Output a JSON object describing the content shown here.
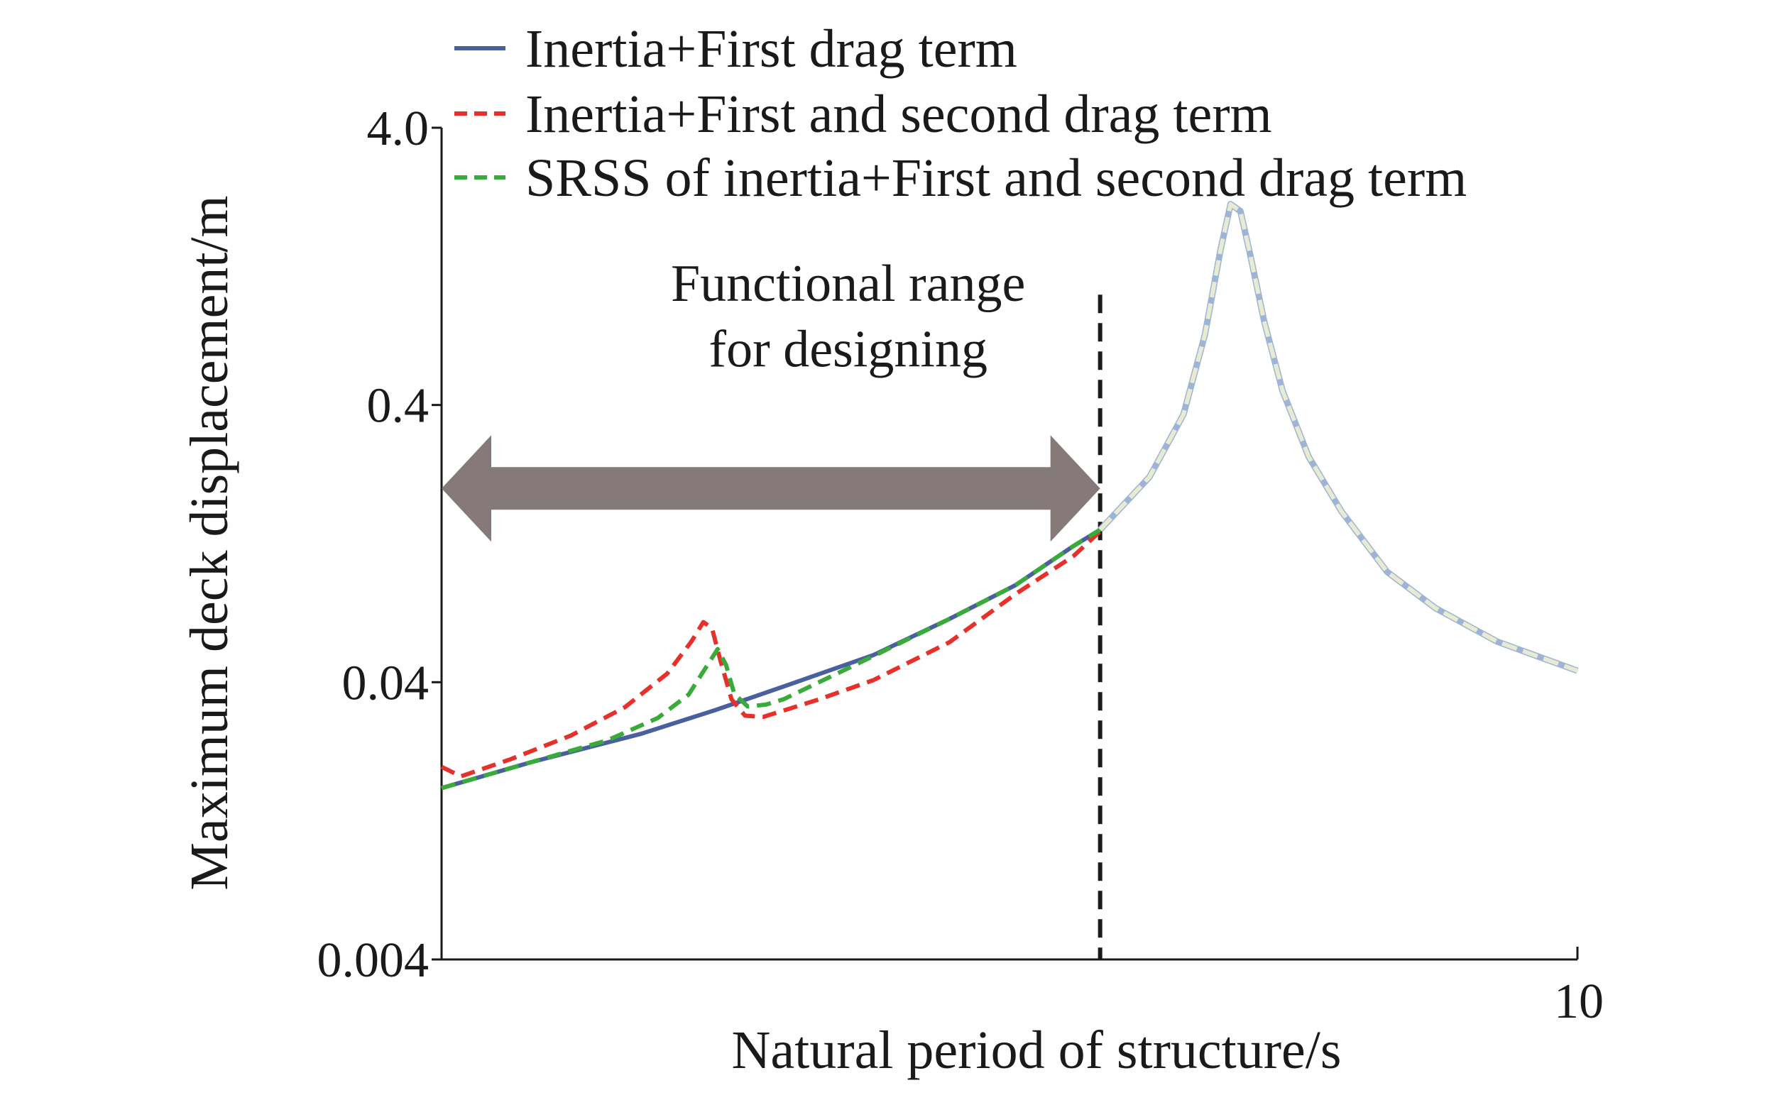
{
  "chart_data": {
    "type": "line",
    "title": "",
    "xlabel": "Natural period of structure/s",
    "ylabel": "Maximum deck displacement/m",
    "x_scale": "log",
    "y_scale": "log",
    "xlim": [
      1,
      10
    ],
    "ylim": [
      0.004,
      4.0
    ],
    "x_tick_labels": [
      "10"
    ],
    "x_tick_values": [
      10
    ],
    "y_tick_labels": [
      "4.0",
      "0.4",
      "0.04",
      "0.004"
    ],
    "y_tick_values": [
      4.0,
      0.4,
      0.04,
      0.004
    ],
    "grid": false,
    "legend_position": "top",
    "colors": {
      "inertia_first": "#4a5fa0",
      "inertia_first_second": "#e8302a",
      "srss": "#3aaa3a",
      "overlay": "#e8ebd2",
      "arrow": "#857979",
      "vline": "#1a1a1a"
    },
    "series": [
      {
        "name": "Inertia+First drag term",
        "style": "solid",
        "x": [
          1.0,
          1.2,
          1.5,
          1.74,
          2.0,
          2.4,
          2.8,
          3.2,
          3.6,
          3.8,
          4.2,
          4.5,
          4.7,
          4.85,
          4.95,
          5.05,
          5.15,
          5.3,
          5.5,
          5.8,
          6.2,
          6.8,
          7.5,
          8.5,
          10.0
        ],
        "y": [
          0.0166,
          0.0206,
          0.0261,
          0.0317,
          0.0386,
          0.0501,
          0.0677,
          0.0895,
          0.124,
          0.142,
          0.22,
          0.37,
          0.72,
          1.45,
          2.12,
          2.0,
          1.4,
          0.8,
          0.45,
          0.26,
          0.165,
          0.1,
          0.074,
          0.056,
          0.044
        ]
      },
      {
        "name": "Inertia+First and second drag term",
        "style": "dashed",
        "x": [
          1.0,
          1.04,
          1.15,
          1.3,
          1.45,
          1.58,
          1.66,
          1.7,
          1.73,
          1.76,
          1.8,
          1.85,
          1.92,
          2.0,
          2.15,
          2.4,
          2.8,
          3.2,
          3.6,
          3.8,
          4.2,
          4.5,
          4.7,
          4.85,
          4.95,
          5.05,
          5.15,
          5.3,
          5.5,
          5.8,
          6.2,
          6.8,
          7.5,
          8.5,
          10.0
        ],
        "y": [
          0.0198,
          0.0183,
          0.0211,
          0.0257,
          0.0325,
          0.043,
          0.0562,
          0.0659,
          0.0627,
          0.0479,
          0.0347,
          0.0303,
          0.03,
          0.0316,
          0.0347,
          0.0407,
          0.0558,
          0.0831,
          0.114,
          0.14,
          0.22,
          0.37,
          0.72,
          1.45,
          2.12,
          2.0,
          1.4,
          0.8,
          0.45,
          0.26,
          0.165,
          0.1,
          0.074,
          0.056,
          0.044
        ]
      },
      {
        "name": "SRSS of inertia+First and second drag term",
        "style": "dashed",
        "x": [
          1.0,
          1.2,
          1.4,
          1.55,
          1.65,
          1.72,
          1.75,
          1.78,
          1.81,
          1.86,
          1.93,
          2.0,
          2.4,
          2.8,
          3.2,
          3.6,
          3.8,
          4.2,
          4.5,
          4.7,
          4.85,
          4.95,
          5.05,
          5.15,
          5.3,
          5.5,
          5.8,
          6.2,
          6.8,
          7.5,
          8.5,
          10.0
        ],
        "y": [
          0.0166,
          0.0206,
          0.0247,
          0.0297,
          0.0361,
          0.0471,
          0.0527,
          0.0462,
          0.0363,
          0.0327,
          0.0332,
          0.0347,
          0.0497,
          0.0677,
          0.0895,
          0.124,
          0.142,
          0.22,
          0.37,
          0.72,
          1.45,
          2.12,
          2.0,
          1.4,
          0.8,
          0.45,
          0.26,
          0.165,
          0.1,
          0.074,
          0.056,
          0.044
        ]
      }
    ],
    "vertical_line": {
      "x": 3.8,
      "y_top": 1.0
    },
    "annotation": {
      "lines": [
        "Functional range",
        "for designing"
      ],
      "arrow_x_range": [
        1.0,
        3.8
      ],
      "arrow_y": 0.2,
      "text_x": 2.28,
      "text_y": [
        0.95,
        0.55
      ]
    }
  }
}
